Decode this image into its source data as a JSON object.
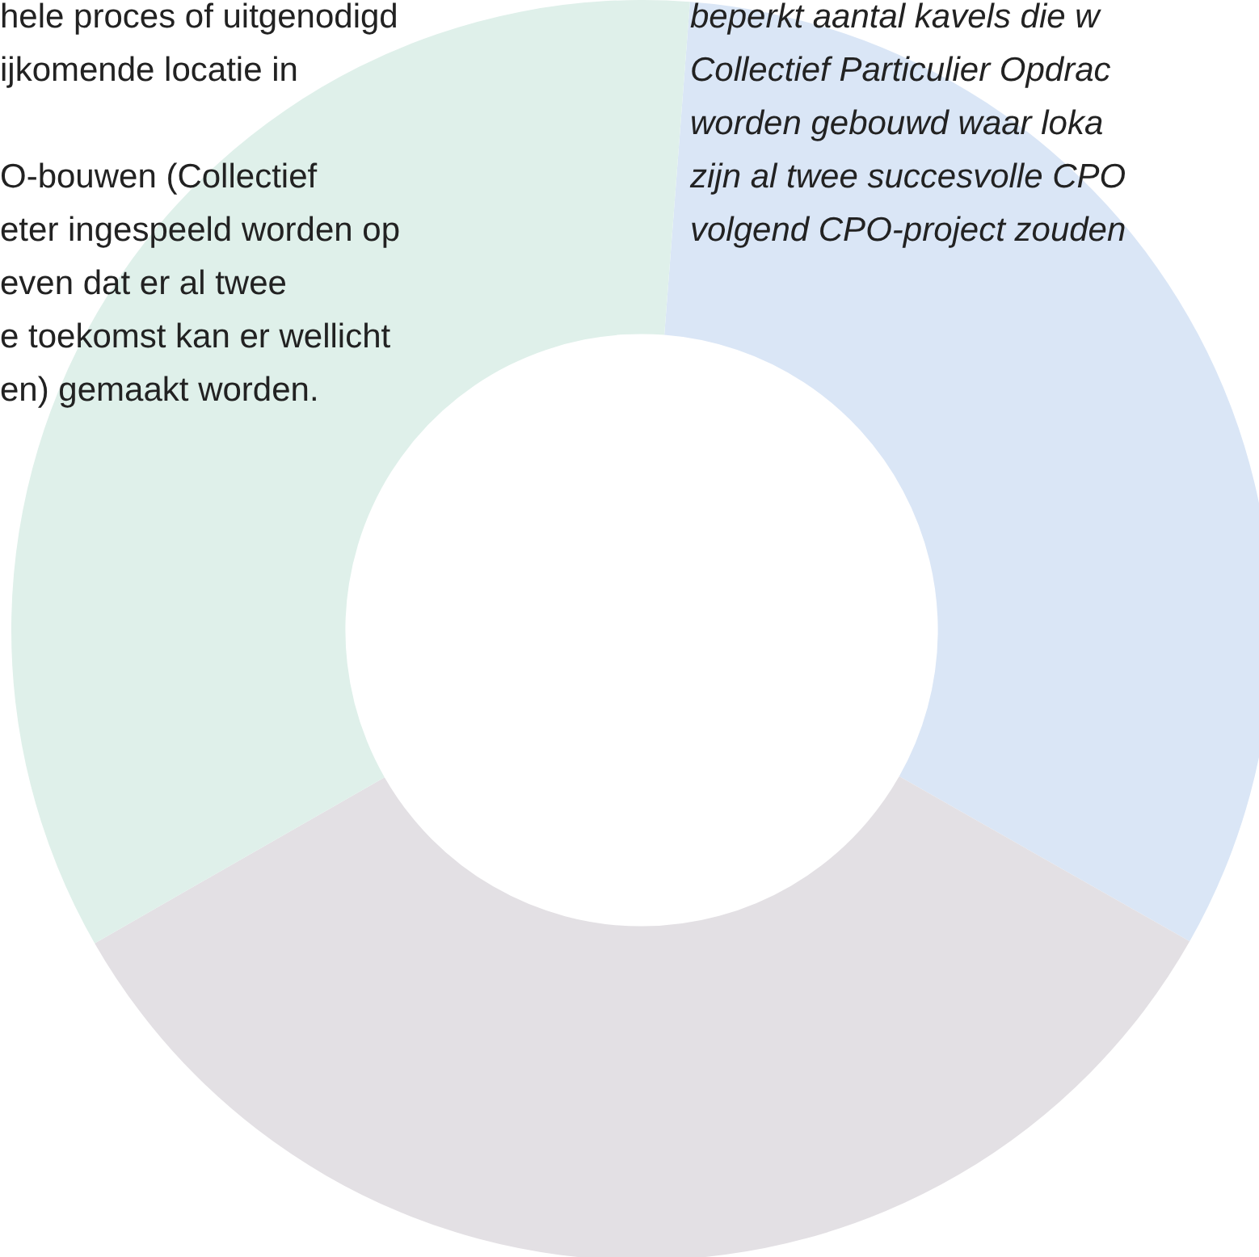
{
  "chart_data": {
    "type": "donut",
    "categories": [
      null,
      null,
      null
    ],
    "values": [
      32,
      33.5,
      34.5
    ],
    "colors": [
      "#dae6f6",
      "#e3e0e4",
      "#dff0ea"
    ],
    "annotations": [
      "hele proces of uitgenodigd\nijkomende locatie in\n\nO-bouwen (Collectief\neter ingespeeld worden op\neven dat er al twee\ne toekomst kan er wellicht\nen) gemaakt worden.",
      "beperkt aantal kavels die w\nCollectief Particulier Opdrac\nworden gebouwd waar loka\nzijn al twee succesvolle CPO\nvolgend CPO-project zouden"
    ]
  }
}
